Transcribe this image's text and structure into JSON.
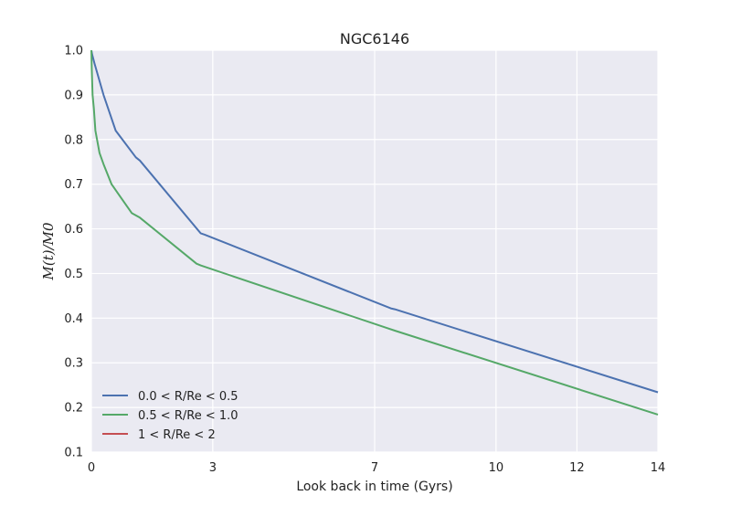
{
  "chart_data": {
    "type": "line",
    "title": "NGC6146",
    "xlabel": "Look back in time (Gyrs)",
    "ylabel": "M(t)/M0",
    "xlim": [
      0,
      14
    ],
    "ylim": [
      0.1,
      1.0
    ],
    "xticks": [
      0,
      3,
      7,
      10,
      12,
      14
    ],
    "yticks": [
      0.1,
      0.2,
      0.3,
      0.4,
      0.5,
      0.6,
      0.7,
      0.8,
      0.9,
      1.0
    ],
    "xtick_labels": [
      "0",
      "3",
      "7",
      "10",
      "12",
      "14"
    ],
    "ytick_labels": [
      "0.1",
      "0.2",
      "0.3",
      "0.4",
      "0.5",
      "0.6",
      "0.7",
      "0.8",
      "0.9",
      "1.0"
    ],
    "grid": true,
    "legend_position": "lower-left",
    "colors": {
      "background": "#eaeaf2",
      "grid": "#ffffff"
    },
    "series": [
      {
        "name": "0.0 < R/Re < 0.5",
        "color": "#4c72b0",
        "x": [
          0,
          0.02,
          0.08,
          0.3,
          0.6,
          1.1,
          1.2,
          2.7,
          2.8,
          7.4,
          7.5,
          14.0
        ],
        "y": [
          1.0,
          0.99,
          0.97,
          0.9,
          0.82,
          0.76,
          0.753,
          0.59,
          0.587,
          0.422,
          0.42,
          0.234
        ]
      },
      {
        "name": "0.5 < R/Re < 1.0",
        "color": "#55a868",
        "x": [
          0,
          0.01,
          0.03,
          0.06,
          0.1,
          0.2,
          0.3,
          0.5,
          1.0,
          1.2,
          2.6,
          2.7,
          7.3,
          7.5,
          14.0
        ],
        "y": [
          1.0,
          0.96,
          0.9,
          0.87,
          0.82,
          0.77,
          0.745,
          0.7,
          0.635,
          0.625,
          0.522,
          0.518,
          0.378,
          0.372,
          0.184
        ]
      },
      {
        "name": "1 < R/Re < 2",
        "color": "#c44e52",
        "x": [],
        "y": []
      }
    ]
  }
}
